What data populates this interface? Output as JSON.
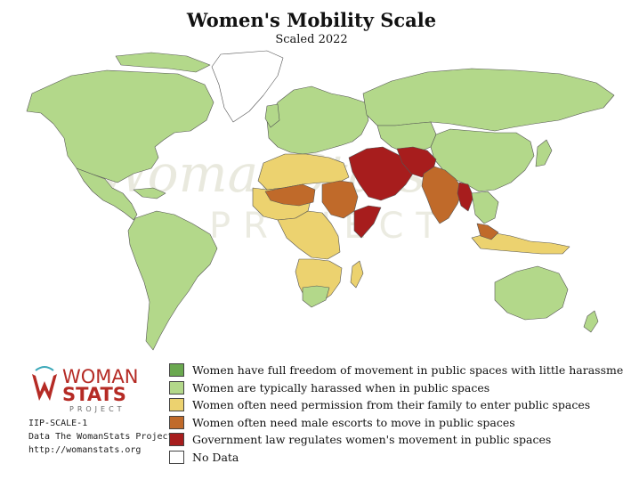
{
  "title": "Women's Mobility Scale",
  "subtitle": "Scaled 2022",
  "watermark": {
    "main": "WomanStats",
    "sub": "PROJECT"
  },
  "logo": {
    "line1": "WOMAN",
    "line2": "STATS",
    "line3": "PROJECT"
  },
  "credits": [
    "IIP-SCALE-1",
    "Data The WomanStats Project",
    "http://womanstats.org"
  ],
  "colors": {
    "level0": "#6aa84f",
    "level1": "#b3d88a",
    "level2": "#ecd26f",
    "level3": "#c06a2a",
    "level4": "#a71d1d",
    "no_data": "#ffffff",
    "border": "#555555",
    "ocean": "#ffffff"
  },
  "legend": [
    {
      "label": "Women have full freedom of movement in public spaces with little harassment",
      "color": "#6aa84f"
    },
    {
      "label": "Women are typically harassed when in public spaces",
      "color": "#b3d88a"
    },
    {
      "label": "Women often need permission from their family to enter public spaces",
      "color": "#ecd26f"
    },
    {
      "label": "Women often need male escorts to move in public spaces",
      "color": "#c06a2a"
    },
    {
      "label": "Government law regulates women's movement in public spaces",
      "color": "#a71d1d"
    },
    {
      "label": "No Data",
      "color": "#ffffff"
    }
  ]
}
